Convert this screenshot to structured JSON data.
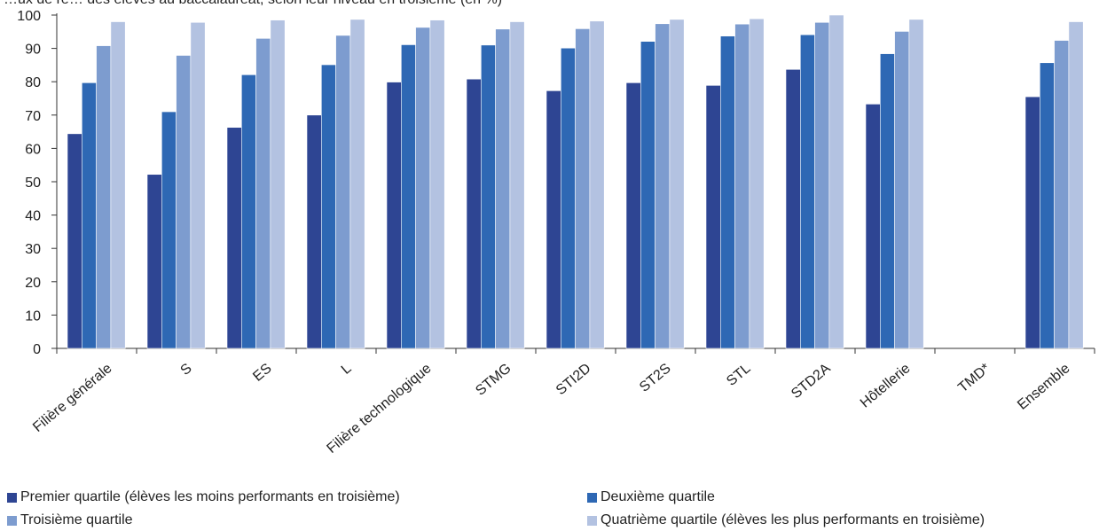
{
  "chart_data": {
    "type": "bar",
    "title": "…ux de ré… des élèves au baccalauréat, selon leur niveau en troisième (en %)",
    "categories": [
      "Filière générale",
      "S",
      "ES",
      "L",
      "Filière technologique",
      "STMG",
      "STI2D",
      "ST2S",
      "STL",
      "STD2A",
      "Hôtellerie",
      "TMD*",
      "Ensemble"
    ],
    "ylim": [
      0,
      100
    ],
    "yticks": [
      0,
      10,
      20,
      30,
      40,
      50,
      60,
      70,
      80,
      90,
      100
    ],
    "grid": false,
    "legend_position": "bottom",
    "series": [
      {
        "name": "Premier quartile (élèves les moins performants en troisième)",
        "color": "#2e4593",
        "values": [
          64.4,
          52.2,
          66.3,
          70.0,
          79.9,
          80.8,
          77.3,
          79.7,
          78.9,
          83.7,
          73.3,
          null,
          75.5
        ]
      },
      {
        "name": "Deuxième quartile",
        "color": "#2e68b4",
        "values": [
          79.7,
          71.0,
          82.1,
          85.1,
          91.1,
          91.0,
          90.1,
          92.1,
          93.7,
          94.1,
          88.4,
          null,
          85.7
        ]
      },
      {
        "name": "Troisième quartile",
        "color": "#7d9ccf",
        "values": [
          90.8,
          87.9,
          93.0,
          93.9,
          96.3,
          95.8,
          95.9,
          97.4,
          97.3,
          97.8,
          95.1,
          null,
          92.4
        ]
      },
      {
        "name": "Quatrième quartile (élèves les plus performants en troisième)",
        "color": "#b3c2e1",
        "values": [
          98.0,
          97.8,
          98.5,
          98.7,
          98.5,
          98.0,
          98.2,
          98.7,
          98.9,
          100.0,
          98.7,
          null,
          98.0
        ]
      }
    ]
  }
}
